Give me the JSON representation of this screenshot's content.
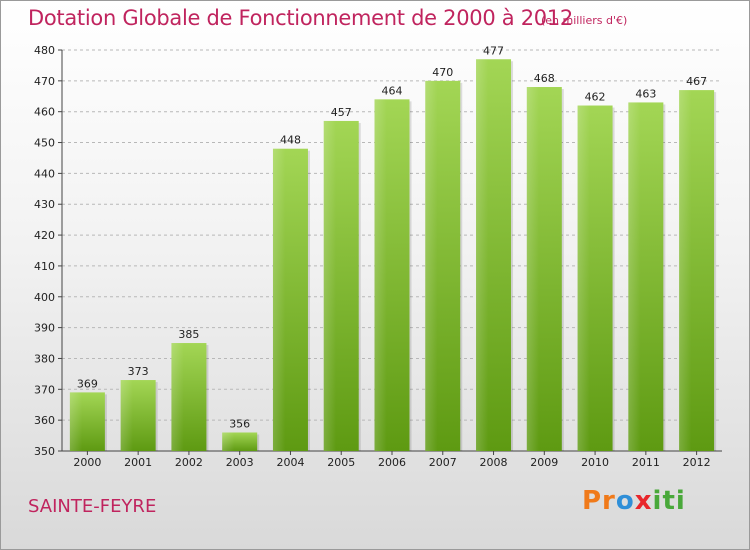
{
  "header": {
    "title": "Dotation Globale de Fonctionnement de 2000 à 2012",
    "unit": "(en milliers d'€)"
  },
  "footer": {
    "commune": "SAINTE-FEYRE",
    "logo": [
      "Pr",
      "o",
      "x",
      "iti"
    ]
  },
  "colors": {
    "title": "#c0245e",
    "bar_light": "#9fd24f",
    "bar_dark": "#5e9a12"
  },
  "chart_data": {
    "type": "bar",
    "title": "Dotation Globale de Fonctionnement de 2000 à 2012",
    "xlabel": "",
    "ylabel": "",
    "categories": [
      "2000",
      "2001",
      "2002",
      "2003",
      "2004",
      "2005",
      "2006",
      "2007",
      "2008",
      "2009",
      "2010",
      "2011",
      "2012"
    ],
    "values": [
      369,
      373,
      385,
      356,
      448,
      457,
      464,
      470,
      477,
      468,
      462,
      463,
      467
    ],
    "ylim": [
      350,
      480
    ],
    "yticks": [
      350,
      360,
      370,
      380,
      390,
      400,
      410,
      420,
      430,
      440,
      450,
      460,
      470,
      480
    ],
    "grid": true,
    "data_labels": true
  }
}
